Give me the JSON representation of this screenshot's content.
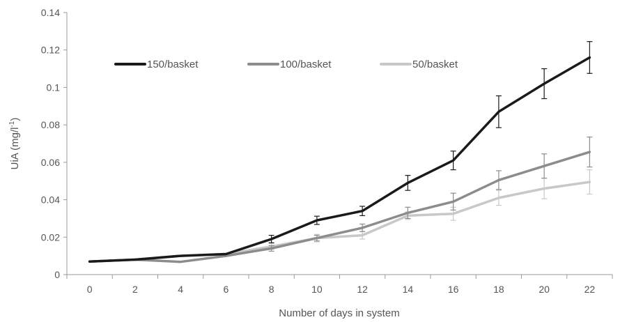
{
  "chart_data": {
    "type": "line",
    "xlabel": "Number of days in system",
    "ylabel_main": "UiA (mg/l",
    "ylabel_sup": "-1",
    "ylabel_close": ")",
    "x": [
      0,
      2,
      4,
      6,
      8,
      10,
      12,
      14,
      16,
      18,
      20,
      22
    ],
    "ylim": [
      0,
      0.14
    ],
    "yticks": [
      0,
      0.02,
      0.04,
      0.06,
      0.08,
      0.1,
      0.12,
      0.14
    ],
    "ytick_labels": [
      "0",
      "0.02",
      "0.04",
      "0.06",
      "0.08",
      "0.1",
      "0.12",
      "0.14"
    ],
    "grid": false,
    "legend_position": "top-left, inside plot",
    "series": [
      {
        "name": "150/basket",
        "color": "#1a1a1a",
        "values": [
          0.007,
          0.008,
          0.01,
          0.011,
          0.019,
          0.029,
          0.034,
          0.049,
          0.061,
          0.087,
          0.102,
          0.116
        ],
        "errors": [
          0.0,
          0.0,
          0.0,
          0.0,
          0.002,
          0.0022,
          0.0025,
          0.004,
          0.005,
          0.0085,
          0.008,
          0.0085
        ]
      },
      {
        "name": "100/basket",
        "color": "#8c8c8c",
        "values": [
          0.007,
          0.008,
          0.0068,
          0.01,
          0.014,
          0.0195,
          0.025,
          0.033,
          0.039,
          0.0505,
          0.058,
          0.0655
        ],
        "errors": [
          0.0,
          0.0,
          0.0,
          0.0,
          0.0015,
          0.0015,
          0.002,
          0.003,
          0.0045,
          0.005,
          0.0065,
          0.008
        ]
      },
      {
        "name": "50/basket",
        "color": "#c8c8c8",
        "values": [
          0.007,
          0.008,
          0.01,
          0.011,
          0.015,
          0.0195,
          0.021,
          0.0315,
          0.0325,
          0.041,
          0.046,
          0.0495
        ],
        "errors": [
          0.0,
          0.0,
          0.0,
          0.0,
          0.0015,
          0.002,
          0.002,
          0.002,
          0.0035,
          0.004,
          0.0055,
          0.0065
        ]
      }
    ]
  }
}
